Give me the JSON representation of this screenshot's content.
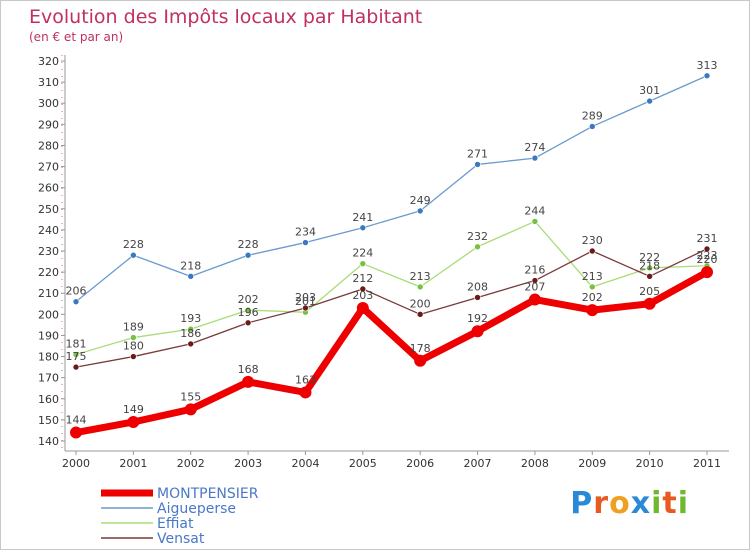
{
  "chart_data": {
    "type": "line",
    "title": "Evolution des Impôts locaux par Habitant",
    "subtitle": "(en € et par an)",
    "xlabel": "",
    "ylabel": "",
    "x": [
      "2000",
      "2001",
      "2002",
      "2003",
      "2004",
      "2005",
      "2006",
      "2007",
      "2008",
      "2009",
      "2010",
      "2011"
    ],
    "yticks": [
      140,
      150,
      160,
      170,
      180,
      190,
      200,
      210,
      220,
      230,
      240,
      250,
      260,
      270,
      280,
      290,
      300,
      310,
      320
    ],
    "ylim": [
      140,
      320
    ],
    "grid": false,
    "legend_position": "bottom-left",
    "series": [
      {
        "name": "Aigueperse",
        "color": "#6a9ad0",
        "marker": "#3a78c0",
        "values": [
          206,
          228,
          218,
          228,
          234,
          241,
          249,
          271,
          274,
          289,
          301,
          313
        ]
      },
      {
        "name": "Effiat",
        "color": "#a8dc78",
        "marker": "#78c040",
        "values": [
          181,
          189,
          193,
          202,
          201,
          224,
          213,
          232,
          244,
          213,
          222,
          223
        ]
      },
      {
        "name": "Vensat",
        "color": "#7a3a3a",
        "marker": "#6a1a1a",
        "values": [
          175,
          180,
          186,
          196,
          203,
          212,
          200,
          208,
          216,
          230,
          218,
          231
        ]
      },
      {
        "name": "MONTPENSIER",
        "color": "#ee0000",
        "marker": "#ee0000",
        "values": [
          144,
          149,
          155,
          168,
          163,
          203,
          178,
          192,
          207,
          202,
          205,
          220
        ]
      }
    ]
  },
  "legend": {
    "items": [
      "MONTPENSIER",
      "Aigueperse",
      "Effiat",
      "Vensat"
    ]
  },
  "logo": {
    "letters": [
      "P",
      "r",
      "o",
      "x",
      "i",
      "t",
      "i"
    ],
    "colors": [
      "#2a8ad8",
      "#e85a20",
      "#f0a020",
      "#2a8ad8",
      "#70b830",
      "#e85a20",
      "#70b830"
    ]
  }
}
